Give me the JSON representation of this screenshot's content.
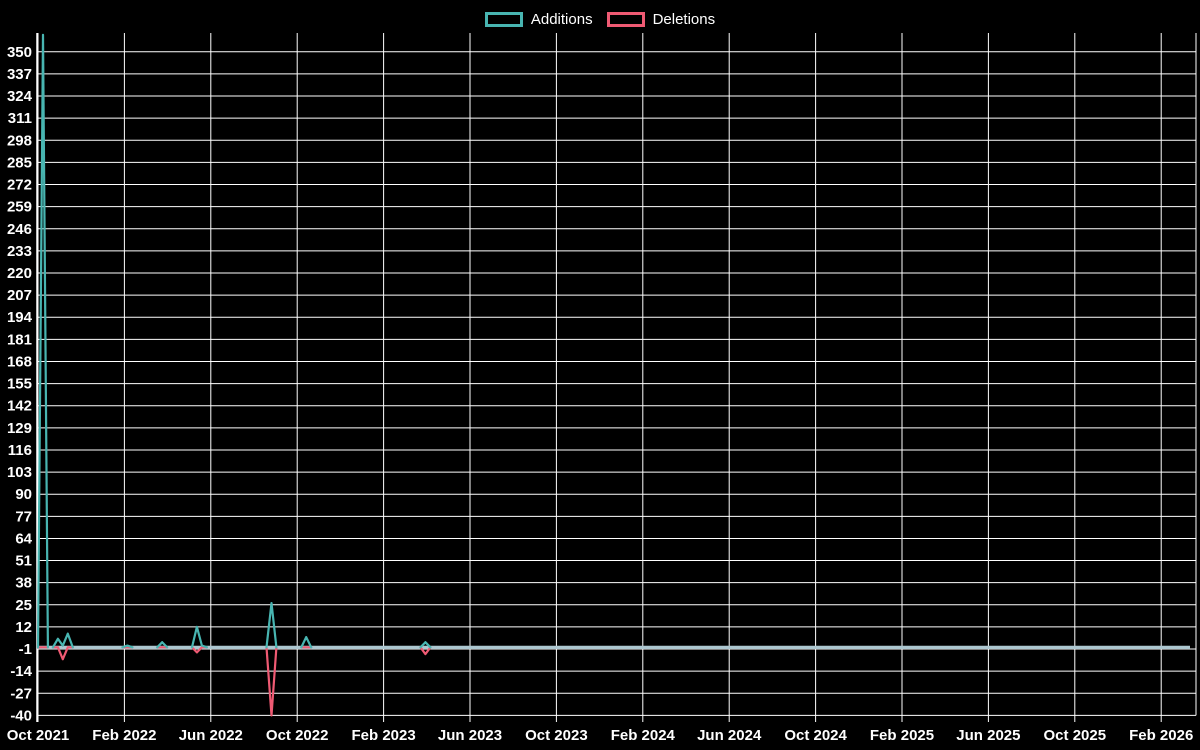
{
  "legend": {
    "items": [
      {
        "label": "Additions",
        "color": "#48b5b1"
      },
      {
        "label": "Deletions",
        "color": "#ef5a73"
      }
    ]
  },
  "chart_data": {
    "type": "line",
    "title": "",
    "legend_position": "top-center",
    "background_color": "#000000",
    "grid": "on",
    "grid_color": "#ffffff",
    "zero_line_color": "#adc7d0",
    "y_ticks": [
      350,
      337,
      324,
      311,
      298,
      285,
      272,
      259,
      246,
      233,
      220,
      207,
      194,
      181,
      168,
      155,
      142,
      129,
      116,
      103,
      90,
      77,
      64,
      51,
      38,
      25,
      12,
      -1,
      -14,
      -27,
      -40
    ],
    "y_range": [
      -40,
      350
    ],
    "x_ticks": [
      "Oct 2021",
      "Feb 2022",
      "Jun 2022",
      "Oct 2022",
      "Feb 2023",
      "Jun 2023",
      "Oct 2023",
      "Feb 2024",
      "Jun 2024",
      "Oct 2024",
      "Feb 2025",
      "Jun 2025",
      "Oct 2025",
      "Feb 2026"
    ],
    "x_span": {
      "start": "2021-10-02",
      "end": "2026-03-07",
      "interval": "weekly"
    },
    "series": [
      {
        "name": "Additions",
        "color": "#48b5b1",
        "baseline": 0,
        "note": "weekly values; all weeks not listed are 0",
        "points": {
          "2021-10-09": 360,
          "2021-10-30": 5,
          "2021-11-06": 1,
          "2021-11-13": 8,
          "2022-02-05": 1,
          "2022-03-26": 3,
          "2022-05-14": 12,
          "2022-05-21": 1,
          "2022-08-27": 26,
          "2022-10-15": 6,
          "2023-04-01": 3
        }
      },
      {
        "name": "Deletions",
        "color": "#ef5a73",
        "baseline": 0,
        "note": "weekly values; all weeks not listed are 0",
        "points": {
          "2021-11-06": -7,
          "2022-05-14": -3,
          "2022-08-27": -40,
          "2023-04-01": -4
        }
      }
    ]
  }
}
